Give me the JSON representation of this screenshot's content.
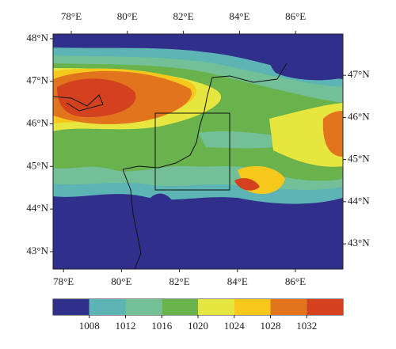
{
  "map": {
    "top_lon_ticks": [
      {
        "value": 78,
        "label": "78°E"
      },
      {
        "value": 80,
        "label": "80°E"
      },
      {
        "value": 82,
        "label": "82°E"
      },
      {
        "value": 84,
        "label": "84°E"
      },
      {
        "value": 86,
        "label": "86°E"
      }
    ],
    "top_lon_lim": [
      77.35,
      87.69
    ],
    "bottom_lon_ticks": [
      {
        "value": 78,
        "label": "78°E"
      },
      {
        "value": 80,
        "label": "80°E"
      },
      {
        "value": 82,
        "label": "82°E"
      },
      {
        "value": 84,
        "label": "84°E"
      },
      {
        "value": 86,
        "label": "86°E"
      }
    ],
    "bottom_lon_lim": [
      77.64,
      87.64
    ],
    "left_lat_ticks": [
      {
        "value": 48,
        "label": "48°N"
      },
      {
        "value": 47,
        "label": "47°N"
      },
      {
        "value": 46,
        "label": "46°N"
      },
      {
        "value": 45,
        "label": "45°N"
      },
      {
        "value": 44,
        "label": "44°N"
      },
      {
        "value": 43,
        "label": "43°N"
      }
    ],
    "left_lat_lim": [
      42.59,
      48.11
    ],
    "right_lat_ticks": [
      {
        "value": 47,
        "label": "47°N"
      },
      {
        "value": 46,
        "label": "46°N"
      },
      {
        "value": 45,
        "label": "45°N"
      },
      {
        "value": 44,
        "label": "44°N"
      },
      {
        "value": 43,
        "label": "43°N"
      }
    ],
    "right_lat_lim": [
      42.4,
      47.98
    ],
    "colorbar": {
      "levels": [
        1008,
        1012,
        1016,
        1020,
        1024,
        1028,
        1032
      ],
      "lim": [
        1004,
        1036
      ],
      "colors": [
        "#302f8c",
        "#5cb5b4",
        "#72bf98",
        "#6ab24c",
        "#e6e63e",
        "#f6c81c",
        "#e3741e",
        "#d3411f"
      ]
    }
  }
}
